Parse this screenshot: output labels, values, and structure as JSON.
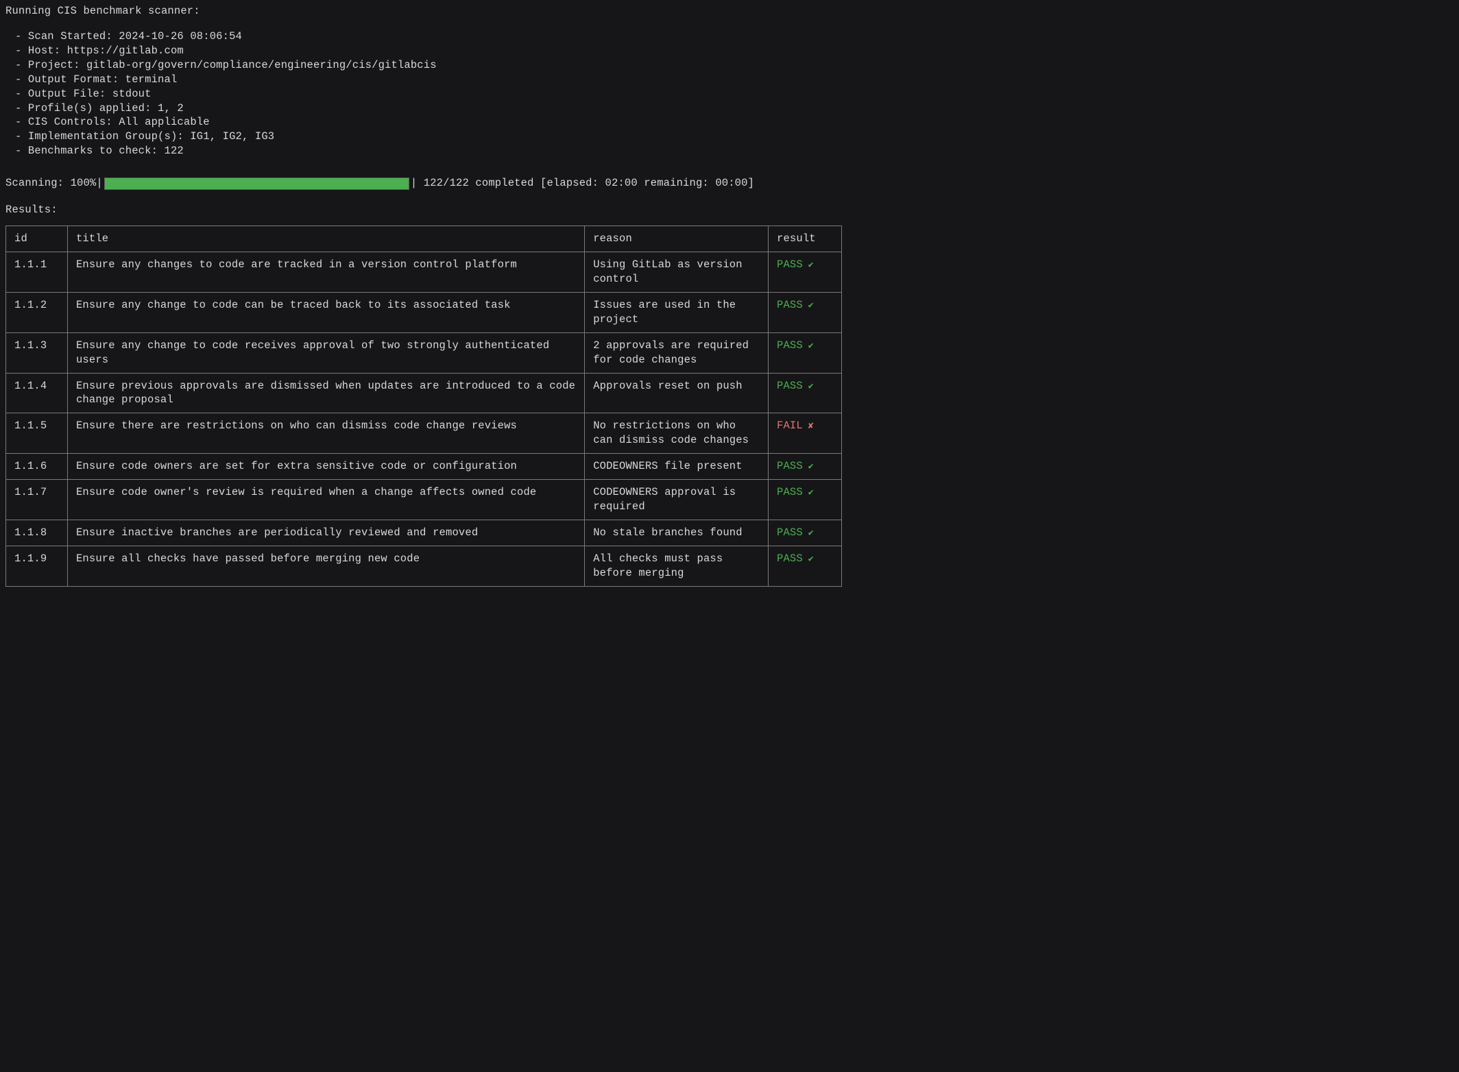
{
  "header": {
    "title": "Running CIS benchmark scanner:",
    "items": [
      "Scan Started: 2024-10-26 08:06:54",
      "Host: https://gitlab.com",
      "Project: gitlab-org/govern/compliance/engineering/cis/gitlabcis",
      "Output Format: terminal",
      "Output File: stdout",
      "Profile(s) applied: 1, 2",
      "CIS Controls: All applicable",
      "Implementation Group(s): IG1, IG2, IG3",
      "Benchmarks to check: 122"
    ]
  },
  "progress": {
    "prefix": "Scanning: 100%|",
    "suffix": "| 122/122 completed [elapsed: 02:00 remaining: 00:00]",
    "percent": 100,
    "bar_color": "#4caf50"
  },
  "results": {
    "title": "Results:",
    "columns": [
      "id",
      "title",
      "reason",
      "result"
    ],
    "rows": [
      {
        "id": "1.1.1",
        "title": "Ensure any changes to code are tracked in a version control platform",
        "reason": "Using GitLab as version control",
        "result": "PASS",
        "status": "pass"
      },
      {
        "id": "1.1.2",
        "title": "Ensure any change to code can be traced back to its associated task",
        "reason": "Issues are used in the project",
        "result": "PASS",
        "status": "pass"
      },
      {
        "id": "1.1.3",
        "title": "Ensure any change to code receives approval of two strongly authenticated users",
        "reason": "2 approvals are required for code changes",
        "result": "PASS",
        "status": "pass"
      },
      {
        "id": "1.1.4",
        "title": "Ensure previous approvals are dismissed when updates are introduced to a code change proposal",
        "reason": "Approvals reset on push",
        "result": "PASS",
        "status": "pass"
      },
      {
        "id": "1.1.5",
        "title": "Ensure there are restrictions on who can dismiss code change reviews",
        "reason": "No restrictions on who can dismiss code changes",
        "result": "FAIL",
        "status": "fail"
      },
      {
        "id": "1.1.6",
        "title": "Ensure code owners are set for extra sensitive code or configuration",
        "reason": "CODEOWNERS file present",
        "result": "PASS",
        "status": "pass"
      },
      {
        "id": "1.1.7",
        "title": "Ensure code owner's review is required when a change affects owned code",
        "reason": "CODEOWNERS approval is required",
        "result": "PASS",
        "status": "pass"
      },
      {
        "id": "1.1.8",
        "title": "Ensure inactive branches are periodically reviewed and removed",
        "reason": "No stale branches found",
        "result": "PASS",
        "status": "pass"
      },
      {
        "id": "1.1.9",
        "title": "Ensure all checks have passed before merging new code",
        "reason": "All checks must pass before merging",
        "result": "PASS",
        "status": "pass"
      }
    ]
  },
  "colors": {
    "background": "#161618",
    "text": "#d8d8d8",
    "border": "#7a7a7a",
    "pass": "#4caf50",
    "fail": "#e57373"
  }
}
